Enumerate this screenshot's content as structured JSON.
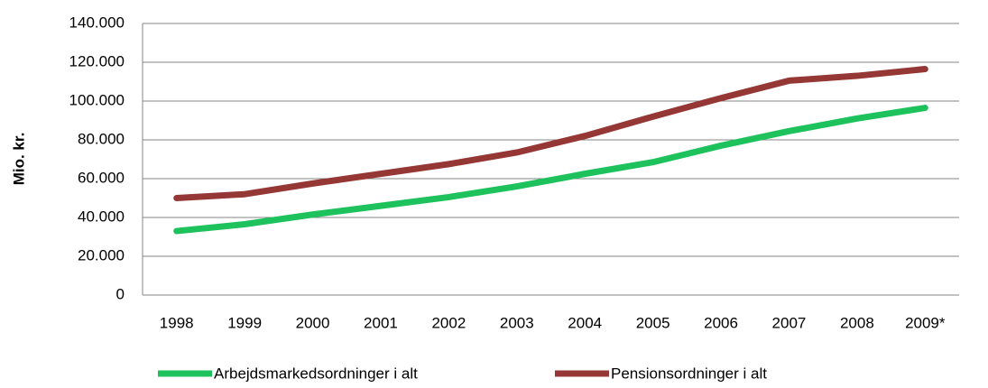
{
  "chart_data": {
    "type": "line",
    "ylabel": "Mio. kr.",
    "categories": [
      "1998",
      "1999",
      "2000",
      "2001",
      "2002",
      "2003",
      "2004",
      "2005",
      "2006",
      "2007",
      "2008",
      "2009*"
    ],
    "series": [
      {
        "name": "Arbejdsmarkedsordninger i alt",
        "color": "#1ec25c",
        "values": [
          33000,
          36500,
          41500,
          46000,
          50500,
          56000,
          62500,
          68500,
          77000,
          84500,
          91000,
          96500
        ]
      },
      {
        "name": "Pensionsordninger i alt",
        "color": "#953735",
        "values": [
          50000,
          52000,
          57500,
          62500,
          67500,
          73500,
          82000,
          92000,
          101500,
          110500,
          113000,
          116500
        ]
      }
    ],
    "ylim": [
      0,
      140000
    ],
    "yticks": [
      0,
      {
        "value": 20000,
        "label": "20.000"
      },
      {
        "value": 40000,
        "label": "40.000"
      },
      {
        "value": 60000,
        "label": "60.000"
      },
      {
        "value": 80000,
        "label": "80.000"
      },
      {
        "value": 100000,
        "label": "100.000"
      },
      {
        "value": 120000,
        "label": "120.000"
      },
      {
        "value": 140000,
        "label": "140.000"
      }
    ],
    "grid": true,
    "legend": "bottom"
  }
}
